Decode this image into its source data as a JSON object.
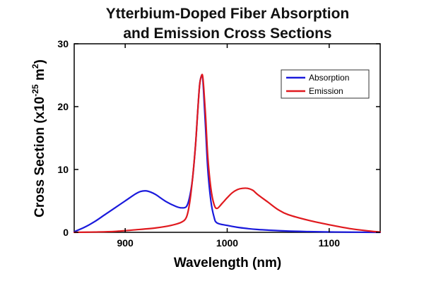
{
  "chart_data": {
    "type": "line",
    "title_lines": [
      "Ytterbium-Doped Fiber Absorption",
      "and Emission Cross Sections"
    ],
    "xlabel": "Wavelength (nm)",
    "ylabel_main": "Cross Section (x10",
    "ylabel_exp_neg": "-25",
    "ylabel_unit": " m",
    "ylabel_exp_sq": "2",
    "ylabel_close": ")",
    "xlim": [
      850,
      1150
    ],
    "ylim": [
      0,
      30
    ],
    "xticks": [
      900,
      1000,
      1100
    ],
    "yticks": [
      0,
      10,
      20,
      30
    ],
    "legend_position": "top-right",
    "series": [
      {
        "name": "Absorption",
        "color": "#1a1adc",
        "x": [
          850,
          860,
          870,
          880,
          890,
          900,
          910,
          915,
          920,
          925,
          930,
          940,
          950,
          955,
          960,
          963,
          966,
          969,
          971,
          973,
          975,
          976,
          977,
          979,
          981,
          984,
          987,
          990,
          1000,
          1010,
          1020,
          1030,
          1040,
          1060,
          1080,
          1100,
          1120,
          1150
        ],
        "values": [
          0.1,
          0.8,
          1.7,
          2.8,
          3.9,
          5.0,
          6.1,
          6.5,
          6.6,
          6.4,
          6.0,
          4.9,
          4.1,
          3.9,
          4.1,
          5.5,
          8.5,
          14,
          19,
          23.5,
          25.0,
          24.5,
          22,
          16,
          10,
          5,
          2.5,
          1.5,
          1.1,
          0.8,
          0.6,
          0.45,
          0.35,
          0.2,
          0.12,
          0.06,
          0.03,
          0.0
        ]
      },
      {
        "name": "Emission",
        "color": "#e0191e",
        "x": [
          850,
          870,
          890,
          910,
          930,
          945,
          955,
          960,
          963,
          966,
          969,
          971,
          973,
          975,
          976,
          977,
          979,
          981,
          984,
          987,
          990,
          995,
          1000,
          1005,
          1010,
          1015,
          1020,
          1025,
          1030,
          1040,
          1050,
          1060,
          1080,
          1100,
          1120,
          1140,
          1150
        ],
        "values": [
          0.0,
          0.05,
          0.15,
          0.4,
          0.7,
          1.1,
          1.6,
          2.4,
          4.5,
          8.5,
          14,
          19,
          23.5,
          25.0,
          24.8,
          23,
          18,
          12,
          7,
          4.5,
          3.8,
          4.6,
          5.5,
          6.3,
          6.8,
          7.0,
          7.0,
          6.7,
          6.0,
          4.8,
          3.6,
          2.8,
          1.9,
          1.2,
          0.6,
          0.2,
          0.05
        ]
      }
    ]
  }
}
